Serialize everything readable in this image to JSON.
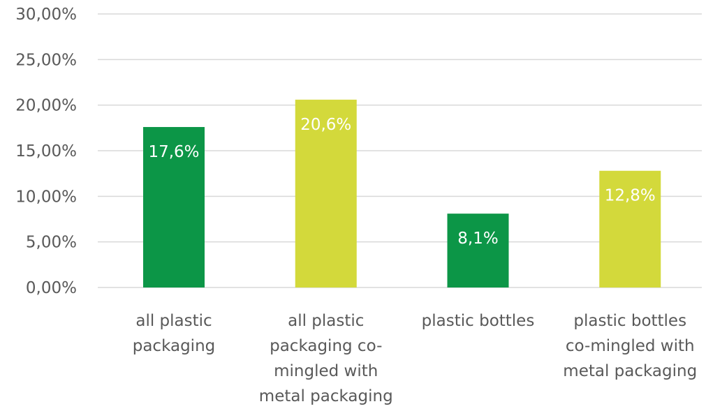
{
  "chart_data": {
    "type": "bar",
    "categories": [
      [
        "all plastic",
        "packaging"
      ],
      [
        "all plastic",
        "packaging co-",
        "mingled with",
        "metal packaging"
      ],
      [
        "plastic bottles"
      ],
      [
        "plastic bottles",
        "co-mingled with",
        "metal packaging"
      ]
    ],
    "values": [
      17.6,
      20.6,
      8.1,
      12.8
    ],
    "data_labels": [
      "17,6%",
      "20,6%",
      "8,1%",
      "12,8%"
    ],
    "bar_colors": [
      "#0c9647",
      "#d3d93b",
      "#0c9647",
      "#d3d93b"
    ],
    "ylim": [
      0,
      30
    ],
    "y_ticks": [
      {
        "value": 0,
        "label": "0,00%"
      },
      {
        "value": 5,
        "label": "5,00%"
      },
      {
        "value": 10,
        "label": "10,00%"
      },
      {
        "value": 15,
        "label": "15,00%"
      },
      {
        "value": 20,
        "label": "20,00%"
      },
      {
        "value": 25,
        "label": "25,00%"
      },
      {
        "value": 30,
        "label": "30,00%"
      }
    ],
    "grid": true,
    "legend": "none",
    "title": "",
    "xlabel": "",
    "ylabel": ""
  }
}
